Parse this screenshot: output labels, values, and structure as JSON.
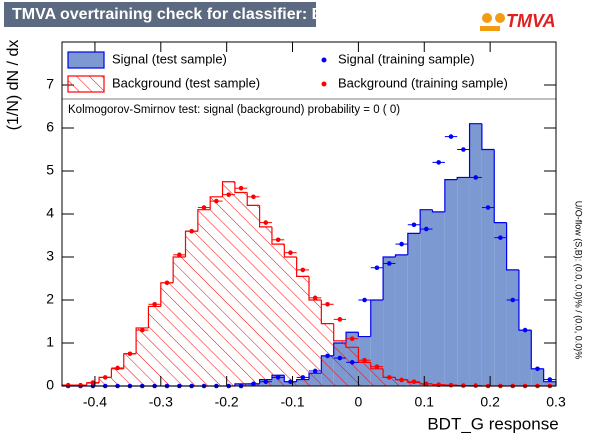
{
  "chart_data": {
    "type": "histogram",
    "title": "TMVA overtraining check for classifier: BDT_G",
    "logo": "TMVA",
    "x_label": "BDT_G response",
    "y_label": "(1/N) dN / dx",
    "annotation": "Kolmogorov-Smirnov test: signal (background) probability =     0 (    0)",
    "side_note": "U/O-flow (S,B): (0.0, 0.0)% / (0.0, 0.0)%",
    "bins": [
      -0.45,
      -0.43125,
      -0.4125,
      -0.39375,
      -0.375,
      -0.35625,
      -0.3375,
      -0.31875,
      -0.3,
      -0.28125,
      -0.2625,
      -0.24375,
      -0.225,
      -0.20625,
      -0.1875,
      -0.16875,
      -0.15,
      -0.13125,
      -0.1125,
      -0.09375,
      -0.075,
      -0.05625,
      -0.0375,
      -0.01875,
      0,
      0.01875,
      0.0375,
      0.05625,
      0.075,
      0.09375,
      0.1125,
      0.13125,
      0.15,
      0.16875,
      0.1875,
      0.20625,
      0.225,
      0.24375,
      0.2625,
      0.28125,
      0.3
    ],
    "xlim": [
      -0.45,
      0.3
    ],
    "xticks": [
      -0.4,
      -0.3,
      -0.2,
      -0.1,
      0,
      0.1,
      0.2,
      0.3
    ],
    "ylim": [
      0,
      8
    ],
    "yticks": [
      0,
      1,
      2,
      3,
      4,
      5,
      6,
      7
    ],
    "series": [
      {
        "name": "Signal (test sample)",
        "style": "filled",
        "color": "#0000ee",
        "fill": "#7d99d1",
        "values": [
          0,
          0,
          0,
          0,
          0,
          0,
          0,
          0,
          0,
          0,
          0,
          0,
          0,
          0,
          0.05,
          0.05,
          0.15,
          0.25,
          0.1,
          0.15,
          0.3,
          0.7,
          1.0,
          1.25,
          1.15,
          2.0,
          3.0,
          3.05,
          3.55,
          4.1,
          4.05,
          4.8,
          4.85,
          6.1,
          5.5,
          3.8,
          2.7,
          1.3,
          0.4,
          0.1
        ]
      },
      {
        "name": "Background (test sample)",
        "style": "hatched",
        "color": "#ff0000",
        "values": [
          0.02,
          0.02,
          0.07,
          0.2,
          0.4,
          0.75,
          1.35,
          1.85,
          2.4,
          3.0,
          3.6,
          4.1,
          4.4,
          4.75,
          4.5,
          4.2,
          3.7,
          3.3,
          3.0,
          2.55,
          2.0,
          1.45,
          1.05,
          0.9,
          0.55,
          0.4,
          0.2,
          0.15,
          0.08,
          0.05,
          0.03,
          0.02,
          0.01,
          0,
          0,
          0,
          0,
          0,
          0,
          0
        ]
      },
      {
        "name": "Signal (training sample)",
        "style": "points",
        "color": "#0000ff",
        "values": [
          0,
          0,
          0,
          0,
          0,
          0,
          0,
          0,
          0,
          0,
          0,
          0,
          0,
          0,
          0,
          0.05,
          0.1,
          0.2,
          0.1,
          0.2,
          0.35,
          0.7,
          0.65,
          0.55,
          2.0,
          2.75,
          2.85,
          3.3,
          3.75,
          3.65,
          5.2,
          5.8,
          5.5,
          4.85,
          4.15,
          3.45,
          2.0,
          1.3,
          0.4,
          0.15
        ]
      },
      {
        "name": "Background (training sample)",
        "style": "points",
        "color": "#ff0000",
        "values": [
          0.02,
          0.02,
          0.08,
          0.2,
          0.42,
          0.75,
          1.3,
          1.9,
          2.4,
          3.05,
          3.6,
          4.15,
          4.3,
          4.45,
          4.6,
          4.4,
          3.8,
          3.4,
          3.1,
          2.7,
          2.05,
          1.9,
          1.55,
          1.1,
          0.6,
          0.45,
          0.2,
          0.14,
          0.1,
          0.05,
          0.03,
          0.02,
          0.01,
          0.01,
          0,
          0,
          0,
          0,
          0,
          0
        ]
      }
    ]
  }
}
